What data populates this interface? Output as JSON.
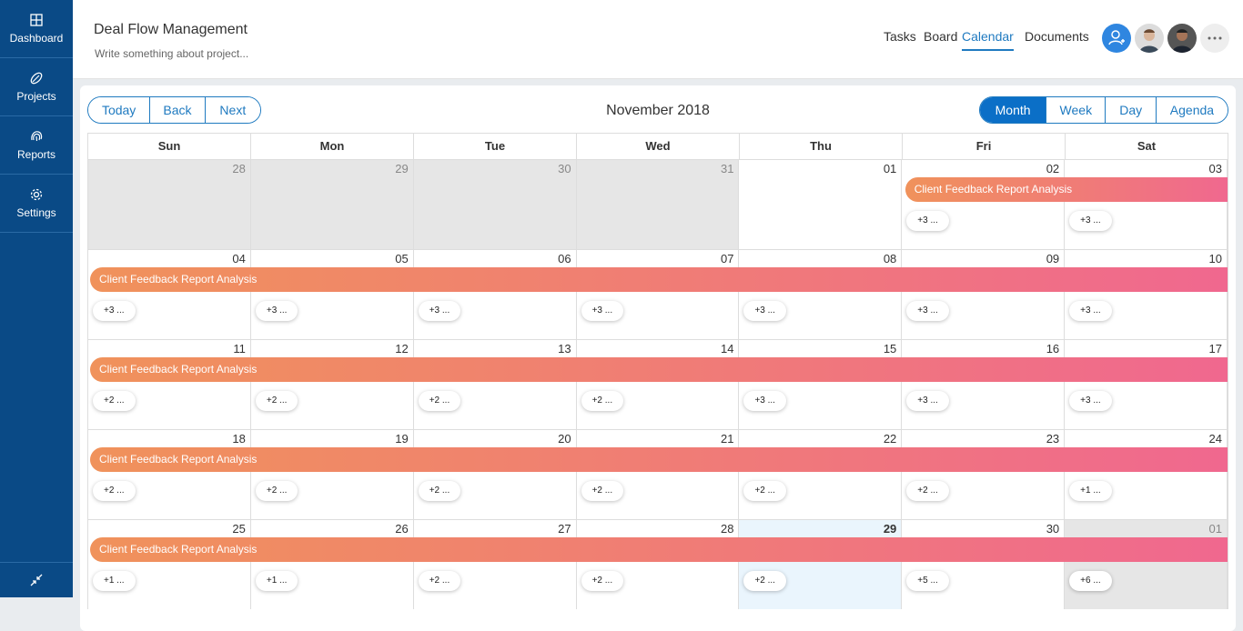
{
  "sidebar": {
    "items": [
      {
        "label": "Dashboard",
        "icon": "grid-icon"
      },
      {
        "label": "Projects",
        "icon": "leaf-icon"
      },
      {
        "label": "Reports",
        "icon": "fingerprint-icon"
      },
      {
        "label": "Settings",
        "icon": "gear-icon"
      }
    ],
    "collapse_icon": "collapse-icon"
  },
  "header": {
    "title": "Deal Flow Management",
    "description": "Write something about project...",
    "tabs": [
      "Tasks",
      "Board",
      "Calendar",
      "Documents"
    ],
    "active_tab": "Calendar"
  },
  "calendar": {
    "nav_buttons": [
      "Today",
      "Back",
      "Next"
    ],
    "title": "November 2018",
    "views": [
      "Month",
      "Week",
      "Day",
      "Agenda"
    ],
    "active_view": "Month",
    "weekdays": [
      "Sun",
      "Mon",
      "Tue",
      "Wed",
      "Thu",
      "Fri",
      "Sat"
    ],
    "event_label": "Client Feedback Report Analysis",
    "weeks": [
      {
        "days": [
          {
            "d": "28",
            "more": "",
            "off": true
          },
          {
            "d": "29",
            "more": "",
            "off": true
          },
          {
            "d": "30",
            "more": "",
            "off": true
          },
          {
            "d": "31",
            "more": "",
            "off": true
          },
          {
            "d": "01",
            "more": ""
          },
          {
            "d": "02",
            "more": "+3 ..."
          },
          {
            "d": "03",
            "more": "+3 ..."
          }
        ],
        "event_start": 5
      },
      {
        "days": [
          {
            "d": "04",
            "more": "+3 ..."
          },
          {
            "d": "05",
            "more": "+3 ..."
          },
          {
            "d": "06",
            "more": "+3 ..."
          },
          {
            "d": "07",
            "more": "+3 ..."
          },
          {
            "d": "08",
            "more": "+3 ..."
          },
          {
            "d": "09",
            "more": "+3 ..."
          },
          {
            "d": "10",
            "more": "+3 ..."
          }
        ],
        "event_start": 0
      },
      {
        "days": [
          {
            "d": "11",
            "more": "+2 ..."
          },
          {
            "d": "12",
            "more": "+2 ..."
          },
          {
            "d": "13",
            "more": "+2 ..."
          },
          {
            "d": "14",
            "more": "+2 ..."
          },
          {
            "d": "15",
            "more": "+3 ..."
          },
          {
            "d": "16",
            "more": "+3 ..."
          },
          {
            "d": "17",
            "more": "+3 ..."
          }
        ],
        "event_start": 0
      },
      {
        "days": [
          {
            "d": "18",
            "more": "+2 ..."
          },
          {
            "d": "19",
            "more": "+2 ..."
          },
          {
            "d": "20",
            "more": "+2 ..."
          },
          {
            "d": "21",
            "more": "+2 ..."
          },
          {
            "d": "22",
            "more": "+2 ..."
          },
          {
            "d": "23",
            "more": "+2 ..."
          },
          {
            "d": "24",
            "more": "+1 ..."
          }
        ],
        "event_start": 0
      },
      {
        "days": [
          {
            "d": "25",
            "more": "+1 ..."
          },
          {
            "d": "26",
            "more": "+1 ..."
          },
          {
            "d": "27",
            "more": "+2 ..."
          },
          {
            "d": "28",
            "more": "+2 ..."
          },
          {
            "d": "29",
            "more": "+2 ...",
            "today": true
          },
          {
            "d": "30",
            "more": "+5 ..."
          },
          {
            "d": "01",
            "more": "+6 ...",
            "off": true
          }
        ],
        "event_start": 0
      }
    ]
  },
  "colors": {
    "sidebar": "#0a4a86",
    "accent": "#1f7ac0",
    "event_start": "#f0925b",
    "event_end": "#f0688f"
  }
}
